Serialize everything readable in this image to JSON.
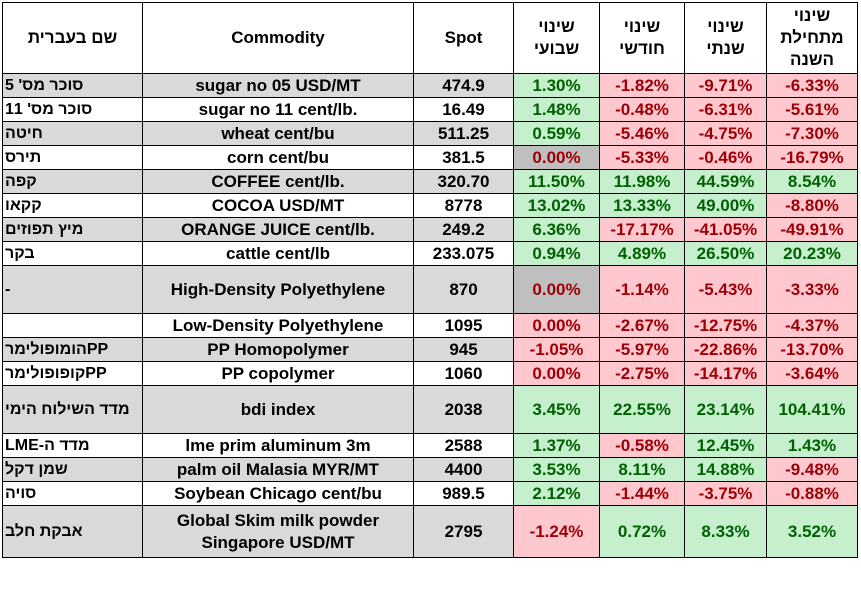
{
  "headers": {
    "hebrew_name": "שם בעברית",
    "commodity": "Commodity",
    "spot": "Spot",
    "weekly": "שינוי שבועי",
    "monthly": "שינוי חודשי",
    "yearly": "שינוי שנתי",
    "ytd": "שינוי מתחילת השנה"
  },
  "rows": [
    {
      "heb": "סוכר מס' 5",
      "comm": "sugar no 05 USD/MT",
      "spot": "474.9",
      "w": "1.30%",
      "m": "-1.82%",
      "y": "-9.71%",
      "ytd": "-6.33%",
      "grey": true
    },
    {
      "heb": "סוכר מס' 11",
      "comm": "sugar no 11 cent/lb.",
      "spot": "16.49",
      "w": "1.48%",
      "m": "-0.48%",
      "y": "-6.31%",
      "ytd": "-5.61%",
      "grey": false
    },
    {
      "heb": "חיטה",
      "comm": "wheat cent/bu",
      "spot": "511.25",
      "w": "0.59%",
      "m": "-5.46%",
      "y": "-4.75%",
      "ytd": "-7.30%",
      "grey": true
    },
    {
      "heb": "תירס",
      "comm": "corn cent/bu",
      "spot": "381.5",
      "w": "0.00%",
      "m": "-5.33%",
      "y": "-0.46%",
      "ytd": "-16.79%",
      "grey": false
    },
    {
      "heb": "קפה",
      "comm": "COFFEE cent/lb.",
      "spot": "320.70",
      "w": "11.50%",
      "m": "11.98%",
      "y": "44.59%",
      "ytd": "8.54%",
      "grey": true
    },
    {
      "heb": "קקאו",
      "comm": "COCOA USD/MT",
      "spot": "8778",
      "w": "13.02%",
      "m": "13.33%",
      "y": "49.00%",
      "ytd": "-8.80%",
      "grey": false
    },
    {
      "heb": "מיץ תפוזים",
      "comm": "ORANGE JUICE cent/lb.",
      "spot": "249.2",
      "w": "6.36%",
      "m": "-17.17%",
      "y": "-41.05%",
      "ytd": "-49.91%",
      "grey": true
    },
    {
      "heb": "בקר",
      "comm": "cattle cent/lb",
      "spot": "233.075",
      "w": "0.94%",
      "m": "4.89%",
      "y": "26.50%",
      "ytd": "20.23%",
      "grey": false
    },
    {
      "heb": "-",
      "comm": "High-Density Polyethylene",
      "spot": "870",
      "w": "0.00%",
      "m": "-1.14%",
      "y": "-5.43%",
      "ytd": "-3.33%",
      "grey": true,
      "tall": true
    },
    {
      "heb": "",
      "comm": "Low-Density Polyethylene",
      "spot": "1095",
      "w": "0.00%",
      "m": "-2.67%",
      "y": "-12.75%",
      "ytd": "-4.37%",
      "grey": false
    },
    {
      "heb": "PPהומופולימר",
      "comm": "PP Homopolymer",
      "spot": "945",
      "w": "-1.05%",
      "m": "-5.97%",
      "y": "-22.86%",
      "ytd": "-13.70%",
      "grey": true
    },
    {
      "heb": "PPקופופולימר",
      "comm": "PP copolymer",
      "spot": "1060",
      "w": "0.00%",
      "m": "-2.75%",
      "y": "-14.17%",
      "ytd": "-3.64%",
      "grey": false
    },
    {
      "heb": "מדד השילוח הימי",
      "comm": "bdi index",
      "spot": "2038",
      "w": "3.45%",
      "m": "22.55%",
      "y": "23.14%",
      "ytd": "104.41%",
      "grey": true,
      "tall": true
    },
    {
      "heb": "מדד ה-LME",
      "comm": "lme prim aluminum 3m",
      "spot": "2588",
      "w": "1.37%",
      "m": "-0.58%",
      "y": "12.45%",
      "ytd": "1.43%",
      "grey": false
    },
    {
      "heb": "שמן דקל",
      "comm": "palm oil Malasia MYR/MT",
      "spot": "4400",
      "w": "3.53%",
      "m": "8.11%",
      "y": "14.88%",
      "ytd": "-9.48%",
      "grey": true
    },
    {
      "heb": "סויה",
      "comm": "Soybean Chicago cent/bu",
      "spot": "989.5",
      "w": "2.12%",
      "m": "-1.44%",
      "y": "-3.75%",
      "ytd": "-0.88%",
      "grey": false
    },
    {
      "heb": "אבקת חלב",
      "comm": "Global Skim milk powder Singapore USD/MT",
      "spot": "2795",
      "w": "-1.24%",
      "m": "0.72%",
      "y": "8.33%",
      "ytd": "3.52%",
      "grey": true,
      "tall": true
    }
  ]
}
